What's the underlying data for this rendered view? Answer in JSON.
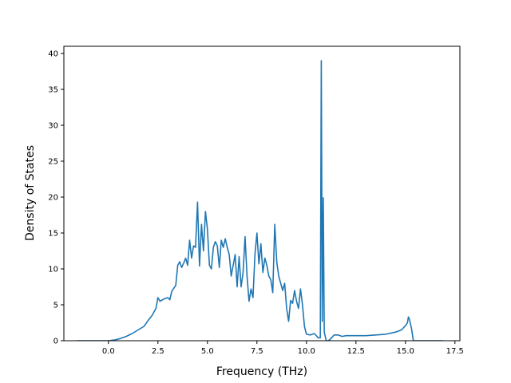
{
  "chart_data": {
    "type": "line",
    "title": "",
    "xlabel": "Frequency (THz)",
    "ylabel": "Density of States",
    "xlim": [
      -2.25,
      17.75
    ],
    "ylim": [
      0,
      41
    ],
    "xticks": [
      0.0,
      2.5,
      5.0,
      7.5,
      10.0,
      12.5,
      15.0,
      17.5
    ],
    "xtick_labels": [
      "0.0",
      "2.5",
      "5.0",
      "7.5",
      "10.0",
      "12.5",
      "15.0",
      "17.5"
    ],
    "yticks": [
      0,
      5,
      10,
      15,
      20,
      25,
      30,
      35,
      40
    ],
    "ytick_labels": [
      "0",
      "5",
      "10",
      "15",
      "20",
      "25",
      "30",
      "35",
      "40"
    ],
    "grid": false,
    "legend": "none",
    "colors": {
      "line": "#1f77b4",
      "axes": "#000000",
      "background": "#ffffff"
    },
    "series": [
      {
        "x": [
          -1.6,
          -0.8,
          0.0,
          0.3,
          0.6,
          0.9,
          1.2,
          1.5,
          1.8,
          2.0,
          2.2,
          2.4,
          2.5,
          2.6,
          2.8,
          3.0,
          3.1,
          3.2,
          3.4,
          3.5,
          3.6,
          3.7,
          3.8,
          3.9,
          4.0,
          4.1,
          4.2,
          4.3,
          4.4,
          4.5,
          4.6,
          4.7,
          4.8,
          4.9,
          5.0,
          5.1,
          5.2,
          5.3,
          5.4,
          5.5,
          5.6,
          5.7,
          5.8,
          5.9,
          6.0,
          6.1,
          6.2,
          6.3,
          6.4,
          6.5,
          6.6,
          6.7,
          6.8,
          6.9,
          7.0,
          7.1,
          7.2,
          7.3,
          7.4,
          7.5,
          7.6,
          7.7,
          7.8,
          7.9,
          8.0,
          8.1,
          8.2,
          8.3,
          8.4,
          8.5,
          8.6,
          8.7,
          8.8,
          8.9,
          9.0,
          9.1,
          9.2,
          9.3,
          9.4,
          9.5,
          9.6,
          9.7,
          9.8,
          9.9,
          10.0,
          10.2,
          10.4,
          10.6,
          10.7,
          10.75,
          10.8,
          10.85,
          10.9,
          11.0,
          11.1,
          11.2,
          11.4,
          11.6,
          11.8,
          12.0,
          12.5,
          13.0,
          13.5,
          14.0,
          14.5,
          14.8,
          15.0,
          15.1,
          15.15,
          15.2,
          15.3,
          15.4,
          15.6,
          16.0,
          16.9
        ],
        "y": [
          0.0,
          0.0,
          0.0,
          0.1,
          0.3,
          0.6,
          1.0,
          1.5,
          2.0,
          2.8,
          3.5,
          4.5,
          6.0,
          5.5,
          5.8,
          6.0,
          5.7,
          6.9,
          7.7,
          10.5,
          11.0,
          10.2,
          10.8,
          11.5,
          10.5,
          14.0,
          11.5,
          13.2,
          13.0,
          19.3,
          10.4,
          16.2,
          12.5,
          18.0,
          15.5,
          10.5,
          10.0,
          13.0,
          13.8,
          13.2,
          10.2,
          14.0,
          13.0,
          14.2,
          13.0,
          12.0,
          9.0,
          10.5,
          12.0,
          7.5,
          11.7,
          7.5,
          9.5,
          14.5,
          9.0,
          5.5,
          7.2,
          6.0,
          12.0,
          15.0,
          10.7,
          13.5,
          9.5,
          11.5,
          10.5,
          9.0,
          8.5,
          6.7,
          16.2,
          11.0,
          9.0,
          8.0,
          7.0,
          8.0,
          4.5,
          2.7,
          5.6,
          5.2,
          7.0,
          5.5,
          4.5,
          7.2,
          5.0,
          2.0,
          0.9,
          0.8,
          1.0,
          0.4,
          0.4,
          39.0,
          2.7,
          19.9,
          1.2,
          0.0,
          0.0,
          0.2,
          0.8,
          0.8,
          0.6,
          0.7,
          0.7,
          0.7,
          0.8,
          0.9,
          1.2,
          1.5,
          2.1,
          2.5,
          3.3,
          3.0,
          1.8,
          0.0,
          0.0,
          0.0,
          0.0
        ]
      }
    ]
  }
}
